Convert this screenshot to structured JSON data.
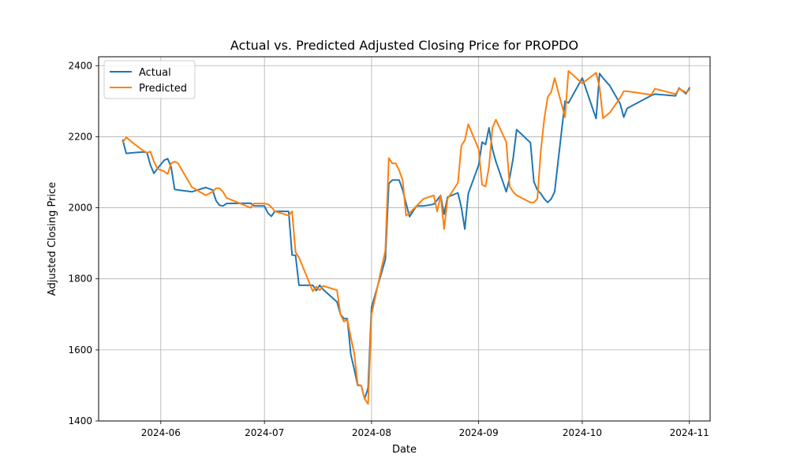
{
  "chart_data": {
    "type": "line",
    "title": "Actual vs. Predicted Adjusted Closing Price for PROPDO",
    "xlabel": "Date",
    "ylabel": "Adjusted Closing Price",
    "x_tick_labels": [
      "2024-06",
      "2024-07",
      "2024-08",
      "2024-09",
      "2024-10",
      "2024-11"
    ],
    "x_tick_dates": [
      "2024-06-01",
      "2024-07-01",
      "2024-08-01",
      "2024-09-01",
      "2024-10-01",
      "2024-11-01"
    ],
    "y_ticks": [
      1400,
      1600,
      1800,
      2000,
      2200,
      2400
    ],
    "xlim": [
      "2024-05-14",
      "2024-11-07"
    ],
    "ylim": [
      1400,
      2425
    ],
    "grid": true,
    "legend_position": "upper-left",
    "series": [
      {
        "name": "Actual",
        "color": "#1f77b4",
        "x": [
          "2024-05-21",
          "2024-05-22",
          "2024-05-24",
          "2024-05-27",
          "2024-05-28",
          "2024-05-29",
          "2024-05-30",
          "2024-05-31",
          "2024-06-02",
          "2024-06-03",
          "2024-06-04",
          "2024-06-05",
          "2024-06-06",
          "2024-06-10",
          "2024-06-14",
          "2024-06-16",
          "2024-06-17",
          "2024-06-18",
          "2024-06-19",
          "2024-06-20",
          "2024-06-27",
          "2024-06-28",
          "2024-07-01",
          "2024-07-02",
          "2024-07-03",
          "2024-07-04",
          "2024-07-08",
          "2024-07-09",
          "2024-07-10",
          "2024-07-11",
          "2024-07-15",
          "2024-07-16",
          "2024-07-17",
          "2024-07-18",
          "2024-07-22",
          "2024-07-23",
          "2024-07-24",
          "2024-07-25",
          "2024-07-26",
          "2024-07-27",
          "2024-07-28",
          "2024-07-29",
          "2024-07-30",
          "2024-07-31",
          "2024-08-01",
          "2024-08-05",
          "2024-08-06",
          "2024-08-07",
          "2024-08-08",
          "2024-08-09",
          "2024-08-10",
          "2024-08-11",
          "2024-08-12",
          "2024-08-14",
          "2024-08-16",
          "2024-08-19",
          "2024-08-20",
          "2024-08-21",
          "2024-08-22",
          "2024-08-23",
          "2024-08-26",
          "2024-08-27",
          "2024-08-28",
          "2024-08-29",
          "2024-09-01",
          "2024-09-02",
          "2024-09-03",
          "2024-09-04",
          "2024-09-05",
          "2024-09-06",
          "2024-09-09",
          "2024-09-10",
          "2024-09-11",
          "2024-09-12",
          "2024-09-16",
          "2024-09-17",
          "2024-09-18",
          "2024-09-19",
          "2024-09-20",
          "2024-09-21",
          "2024-09-22",
          "2024-09-23",
          "2024-09-26",
          "2024-09-27",
          "2024-10-01",
          "2024-10-05",
          "2024-10-06",
          "2024-10-07",
          "2024-10-09",
          "2024-10-12",
          "2024-10-13",
          "2024-10-14",
          "2024-10-21",
          "2024-10-22",
          "2024-10-28",
          "2024-10-29",
          "2024-10-31",
          "2024-11-01"
        ],
        "y": [
          2190,
          2153,
          2155,
          2157,
          2155,
          2120,
          2097,
          2110,
          2134,
          2138,
          2114,
          2052,
          2050,
          2045,
          2057,
          2050,
          2020,
          2007,
          2005,
          2012,
          2013,
          2005,
          2005,
          1985,
          1976,
          1990,
          1990,
          1867,
          1866,
          1782,
          1782,
          1767,
          1782,
          1770,
          1735,
          1700,
          1688,
          1688,
          1587,
          1545,
          1500,
          1500,
          1462,
          1493,
          1720,
          1855,
          2068,
          2078,
          2078,
          2078,
          2050,
          2012,
          1975,
          2005,
          2005,
          2010,
          2022,
          2035,
          1982,
          2030,
          2042,
          2001,
          1940,
          2040,
          2120,
          2185,
          2178,
          2225,
          2165,
          2130,
          2045,
          2085,
          2140,
          2220,
          2183,
          2073,
          2050,
          2040,
          2025,
          2015,
          2025,
          2045,
          2300,
          2295,
          2365,
          2251,
          2378,
          2365,
          2343,
          2292,
          2255,
          2280,
          2316,
          2320,
          2315,
          2337,
          2321,
          2337
        ]
      },
      {
        "name": "Predicted",
        "color": "#ff7f0e",
        "x": [
          "2024-05-21",
          "2024-05-22",
          "2024-05-24",
          "2024-05-27",
          "2024-05-28",
          "2024-05-29",
          "2024-05-30",
          "2024-05-31",
          "2024-06-02",
          "2024-06-03",
          "2024-06-04",
          "2024-06-05",
          "2024-06-06",
          "2024-06-10",
          "2024-06-14",
          "2024-06-16",
          "2024-06-17",
          "2024-06-18",
          "2024-06-19",
          "2024-06-20",
          "2024-06-27",
          "2024-06-28",
          "2024-07-01",
          "2024-07-02",
          "2024-07-03",
          "2024-07-04",
          "2024-07-08",
          "2024-07-09",
          "2024-07-10",
          "2024-07-11",
          "2024-07-15",
          "2024-07-16",
          "2024-07-17",
          "2024-07-18",
          "2024-07-22",
          "2024-07-23",
          "2024-07-24",
          "2024-07-25",
          "2024-07-26",
          "2024-07-27",
          "2024-07-28",
          "2024-07-29",
          "2024-07-30",
          "2024-07-31",
          "2024-08-01",
          "2024-08-05",
          "2024-08-06",
          "2024-08-07",
          "2024-08-08",
          "2024-08-09",
          "2024-08-10",
          "2024-08-11",
          "2024-08-12",
          "2024-08-14",
          "2024-08-16",
          "2024-08-19",
          "2024-08-20",
          "2024-08-21",
          "2024-08-22",
          "2024-08-23",
          "2024-08-26",
          "2024-08-27",
          "2024-08-28",
          "2024-08-29",
          "2024-09-01",
          "2024-09-02",
          "2024-09-03",
          "2024-09-04",
          "2024-09-05",
          "2024-09-06",
          "2024-09-09",
          "2024-09-10",
          "2024-09-11",
          "2024-09-12",
          "2024-09-16",
          "2024-09-17",
          "2024-09-18",
          "2024-09-19",
          "2024-09-20",
          "2024-09-21",
          "2024-09-22",
          "2024-09-23",
          "2024-09-26",
          "2024-09-27",
          "2024-10-01",
          "2024-10-05",
          "2024-10-06",
          "2024-10-07",
          "2024-10-09",
          "2024-10-12",
          "2024-10-13",
          "2024-10-14",
          "2024-10-21",
          "2024-10-22",
          "2024-10-28",
          "2024-10-29",
          "2024-10-31",
          "2024-11-01"
        ],
        "y": [
          2185,
          2198,
          2182,
          2160,
          2155,
          2158,
          2130,
          2110,
          2102,
          2095,
          2125,
          2130,
          2125,
          2058,
          2035,
          2045,
          2055,
          2055,
          2045,
          2028,
          2000,
          2012,
          2012,
          2010,
          2002,
          1990,
          1978,
          1990,
          1875,
          1860,
          1765,
          1778,
          1768,
          1780,
          1768,
          1700,
          1680,
          1685,
          1635,
          1590,
          1502,
          1500,
          1462,
          1448,
          1700,
          1880,
          2140,
          2125,
          2125,
          2105,
          2078,
          1978,
          1985,
          2005,
          2025,
          2035,
          1990,
          2035,
          1940,
          2025,
          2070,
          2175,
          2190,
          2235,
          2165,
          2065,
          2060,
          2115,
          2225,
          2248,
          2185,
          2060,
          2045,
          2035,
          2015,
          2015,
          2025,
          2160,
          2250,
          2312,
          2325,
          2365,
          2255,
          2385,
          2350,
          2380,
          2340,
          2252,
          2268,
          2310,
          2328,
          2328,
          2318,
          2335,
          2320,
          2335,
          2325,
          2332
        ]
      }
    ]
  }
}
